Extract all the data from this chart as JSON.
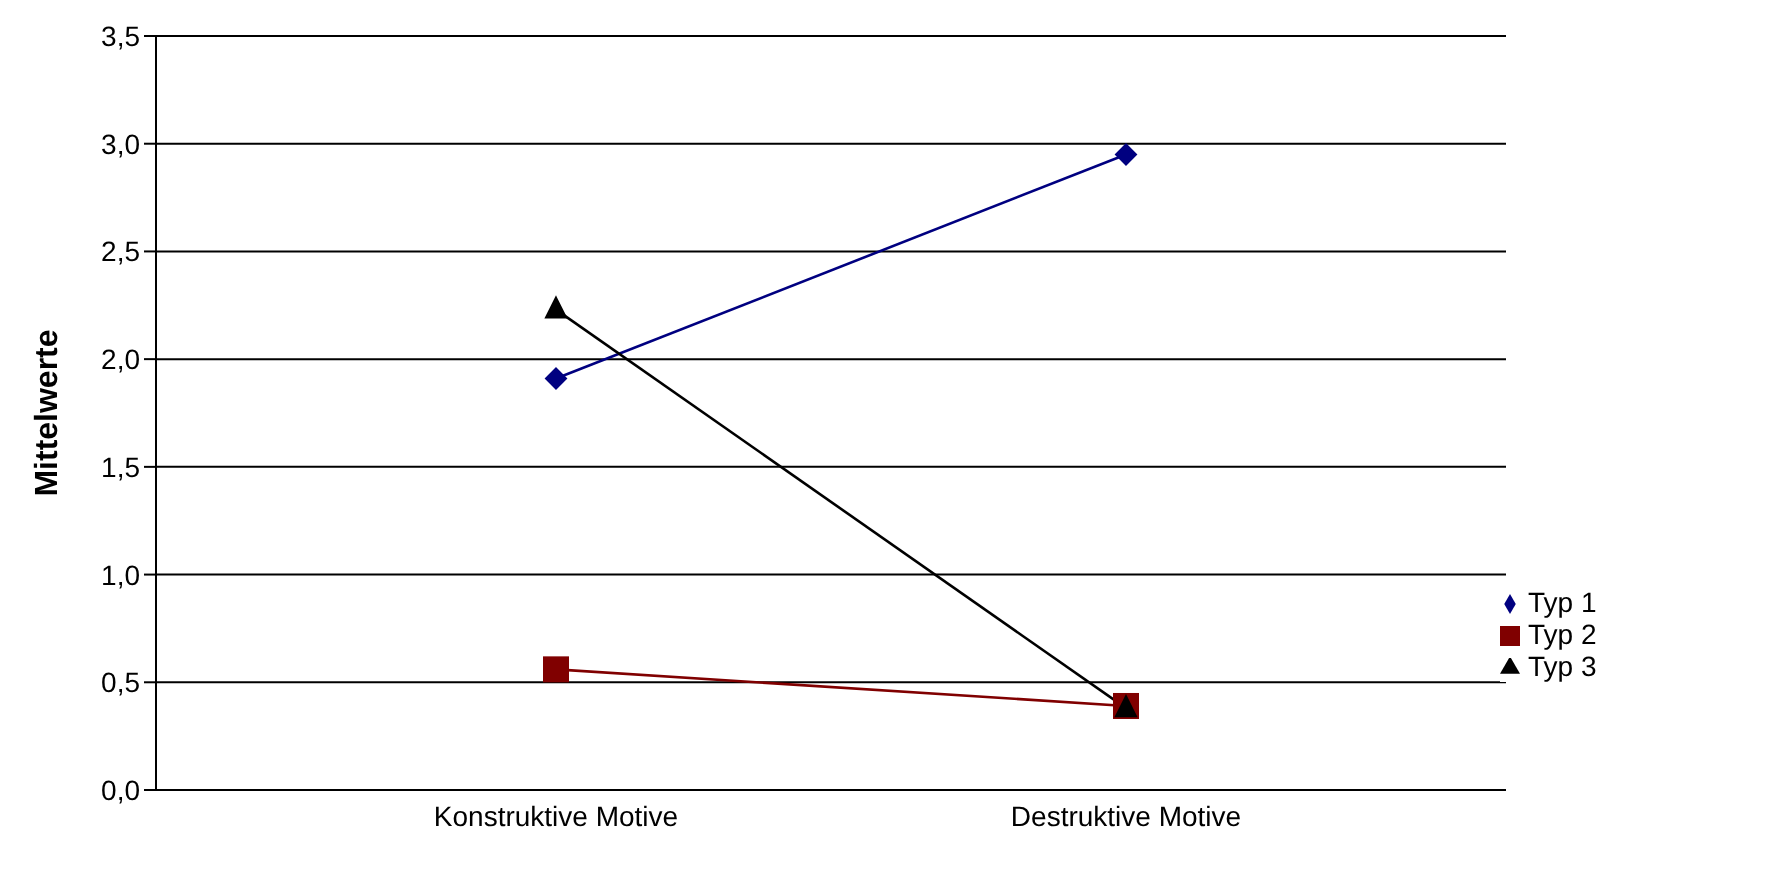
{
  "chart_data": {
    "type": "line",
    "ylabel": "Mittelwerte",
    "categories": [
      "Konstruktive Motive",
      "Destruktive Motive"
    ],
    "series": [
      {
        "name": "Typ 1",
        "color": "#000080",
        "marker": "diamond",
        "values": [
          1.91,
          2.95
        ]
      },
      {
        "name": "Typ 2",
        "color": "#800000",
        "marker": "square",
        "values": [
          0.56,
          0.39
        ]
      },
      {
        "name": "Typ 3",
        "color": "#000000",
        "marker": "triangle",
        "values": [
          2.23,
          0.38
        ]
      }
    ],
    "ylim": [
      0,
      3.5
    ],
    "yticks": [
      {
        "value": 0,
        "label": "0,0"
      },
      {
        "value": 0.5,
        "label": "0,5"
      },
      {
        "value": 1,
        "label": "1,0"
      },
      {
        "value": 1.5,
        "label": "1,5"
      },
      {
        "value": 2,
        "label": "2,0"
      },
      {
        "value": 2.5,
        "label": "2,5"
      },
      {
        "value": 3,
        "label": "3,0"
      },
      {
        "value": 3.5,
        "label": "3,5"
      }
    ],
    "grid": "y",
    "legend": "right"
  }
}
